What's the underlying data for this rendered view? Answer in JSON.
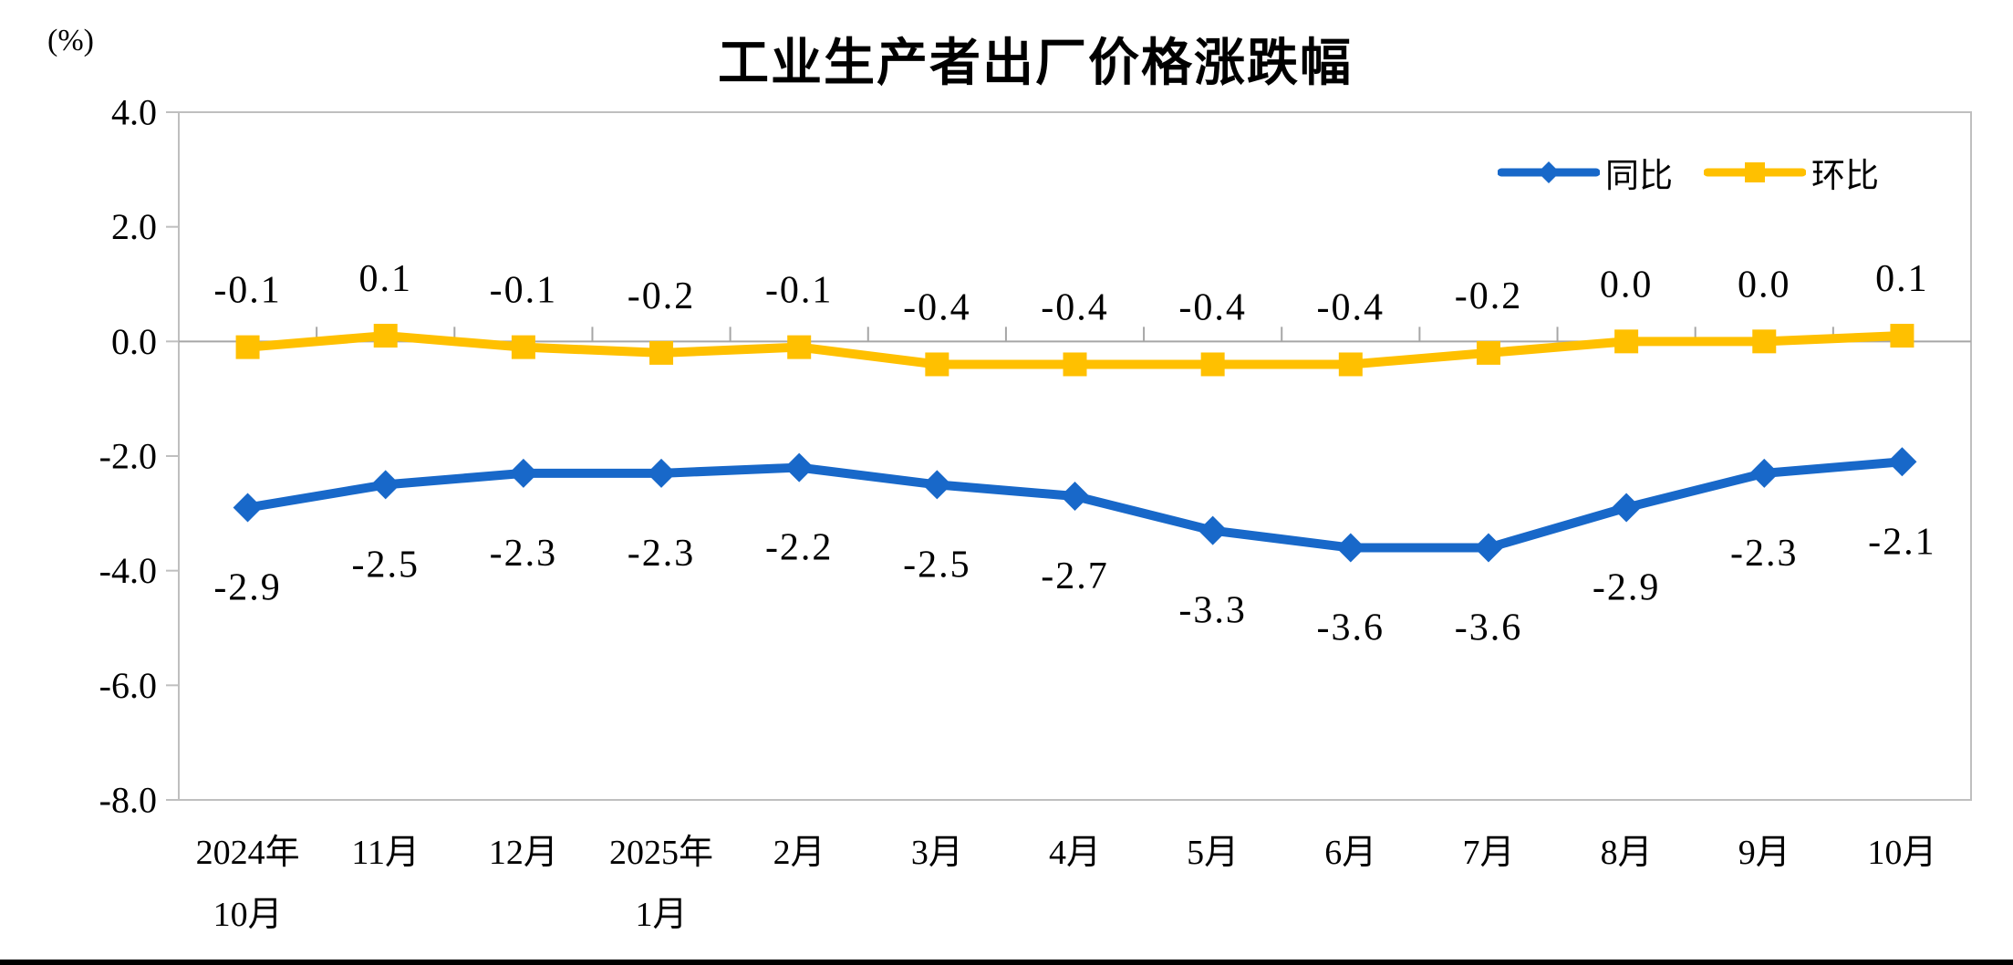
{
  "page": {
    "background": "#ffffff",
    "bottom_rule_color": "#000000"
  },
  "chart_data": {
    "type": "line",
    "title": "工业生产者出厂价格涨跌幅",
    "unit_label": "(%)",
    "categories": [
      [
        "2024年",
        "10月"
      ],
      [
        "11月"
      ],
      [
        "12月"
      ],
      [
        "2025年",
        "1月"
      ],
      [
        "2月"
      ],
      [
        "3月"
      ],
      [
        "4月"
      ],
      [
        "5月"
      ],
      [
        "6月"
      ],
      [
        "7月"
      ],
      [
        "8月"
      ],
      [
        "9月"
      ],
      [
        "10月"
      ]
    ],
    "series": [
      {
        "name": "同比",
        "color": "#1868C9",
        "marker": "diamond",
        "label_position": "below",
        "values": [
          -2.9,
          -2.5,
          -2.3,
          -2.3,
          -2.2,
          -2.5,
          -2.7,
          -3.3,
          -3.6,
          -3.6,
          -2.9,
          -2.3,
          -2.1
        ]
      },
      {
        "name": "环比",
        "color": "#FFC000",
        "marker": "square",
        "label_position": "above",
        "values": [
          -0.1,
          0.1,
          -0.1,
          -0.2,
          -0.1,
          -0.4,
          -0.4,
          -0.4,
          -0.4,
          -0.2,
          0.0,
          0.0,
          0.1
        ]
      }
    ],
    "y_ticks": [
      4.0,
      2.0,
      0.0,
      -2.0,
      -4.0,
      -6.0,
      -8.0
    ],
    "ylim": [
      -8.0,
      4.0
    ],
    "grid": "zero-line-only",
    "legend_position": "top-right",
    "axis_color": "#BFBFBF",
    "zero_line_color": "#A6A6A6",
    "text_color": "#000000"
  }
}
